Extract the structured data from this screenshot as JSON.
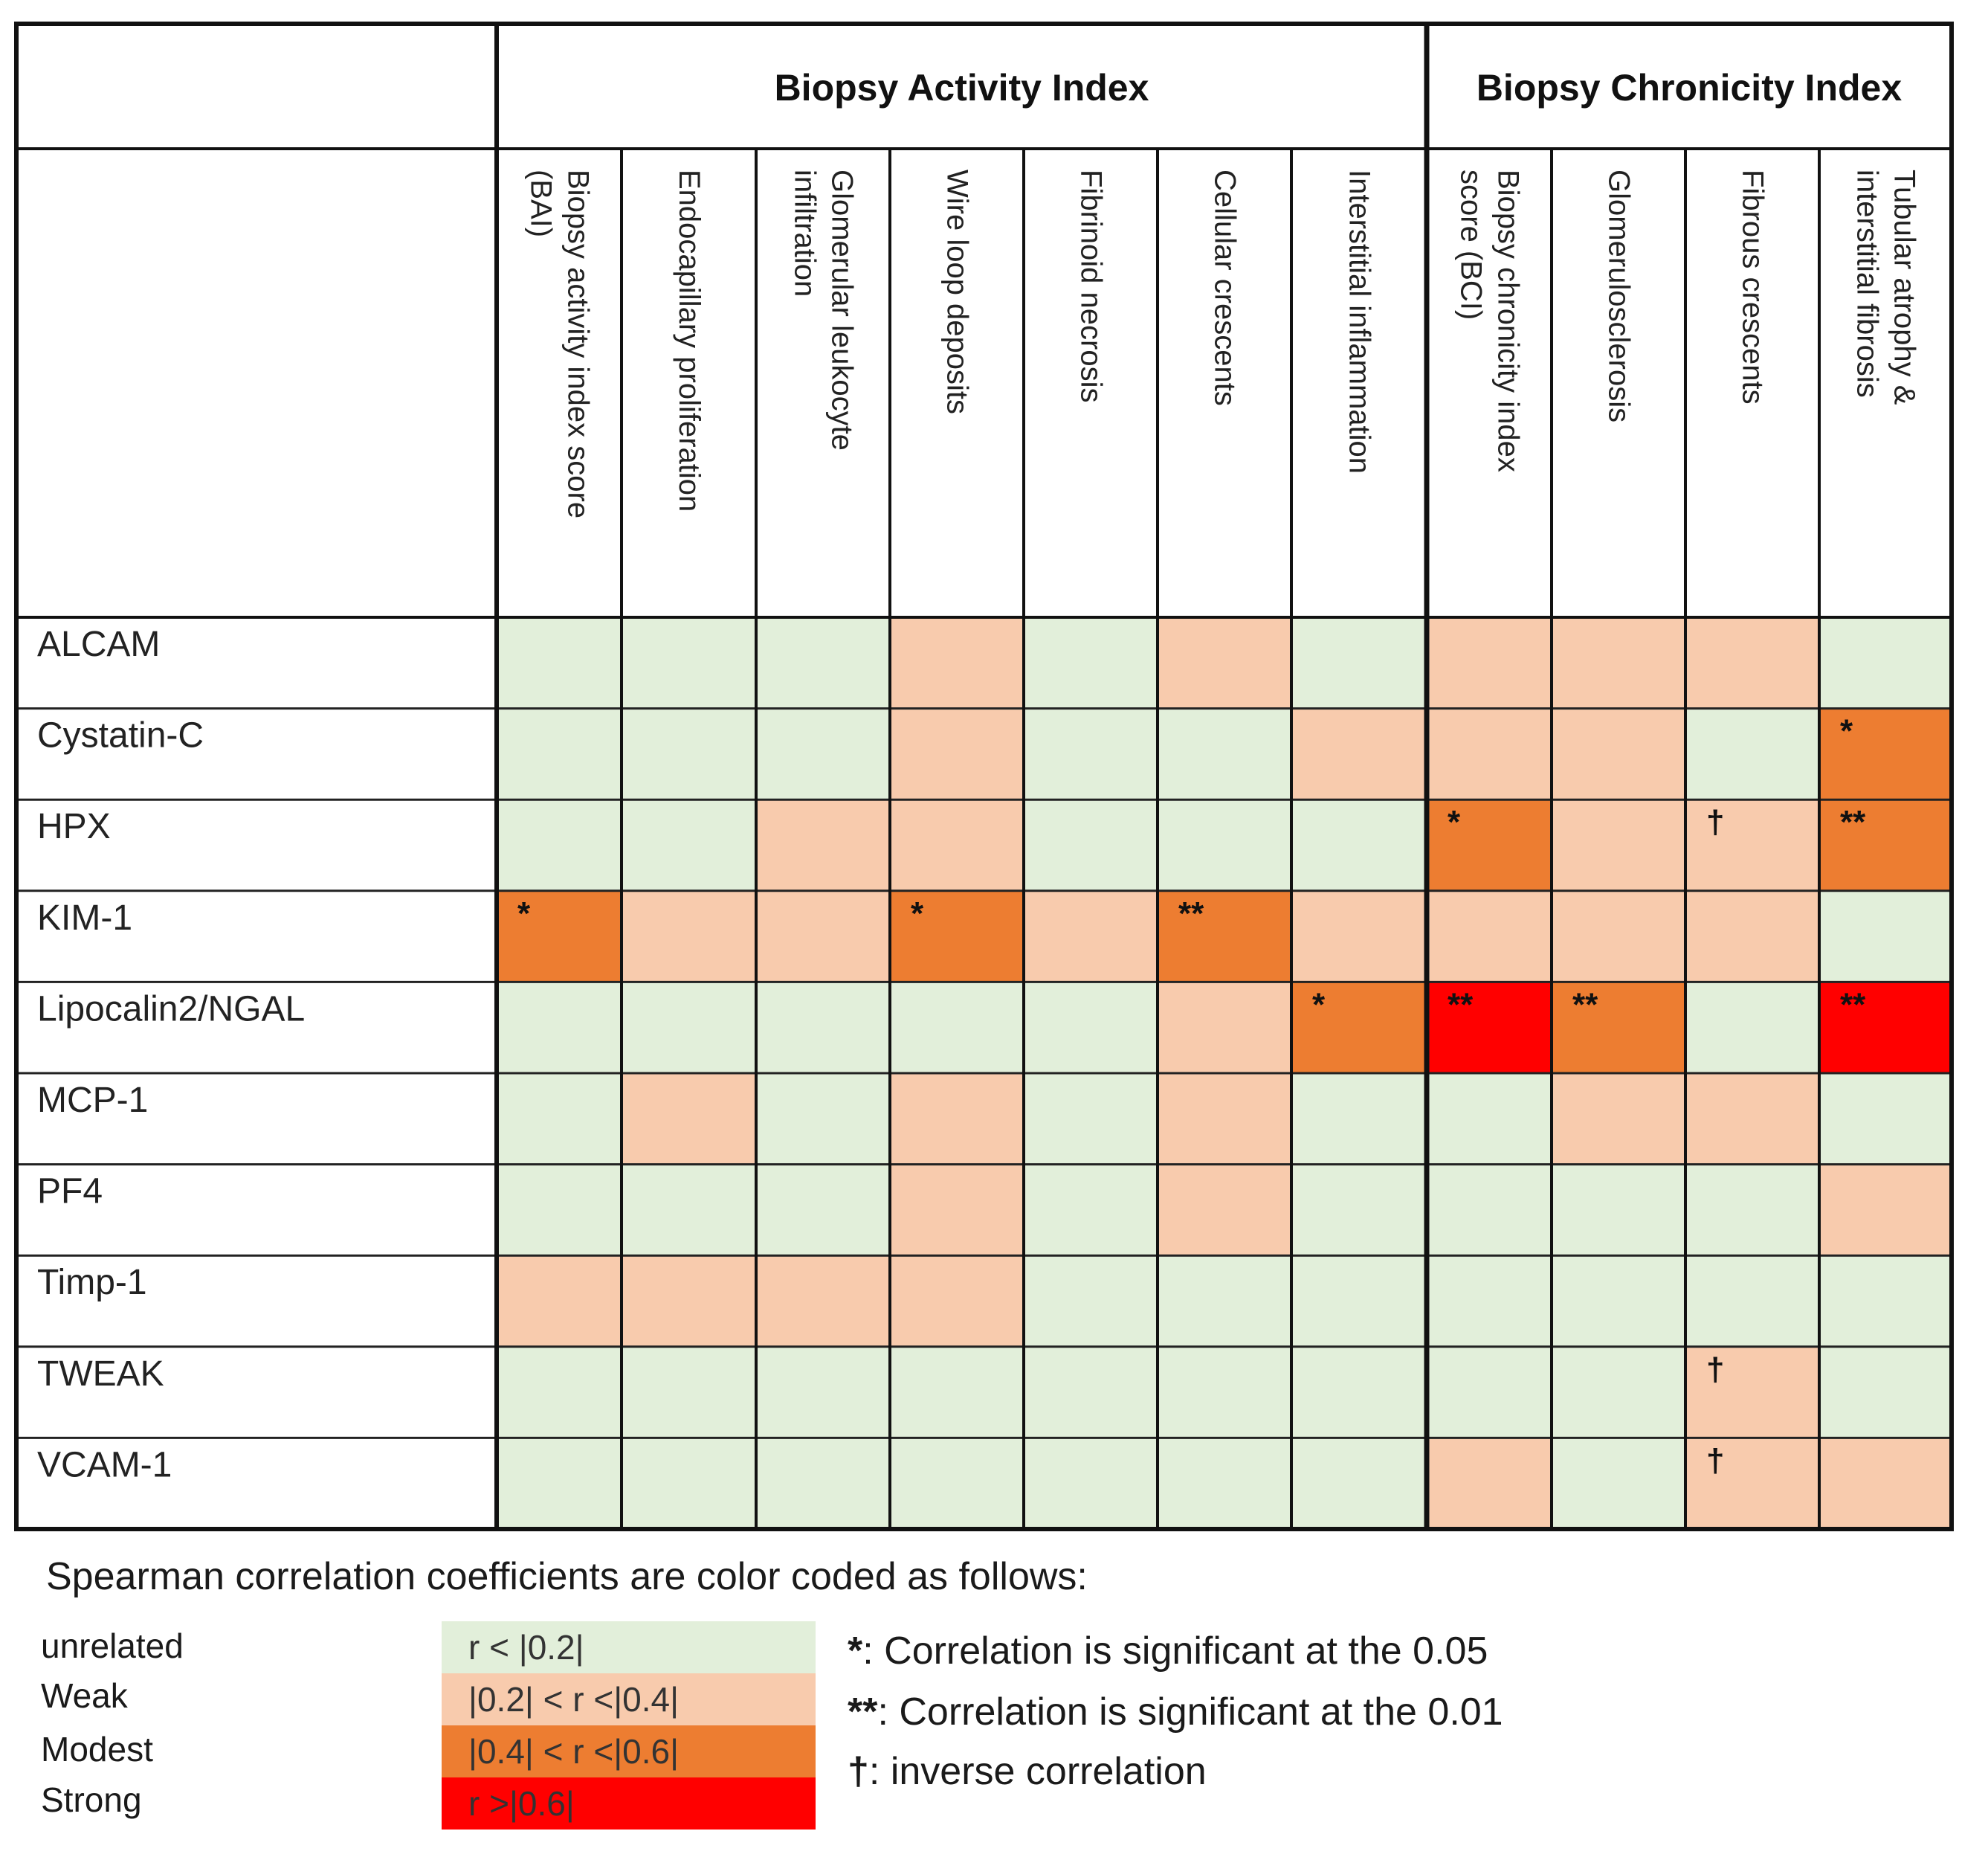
{
  "chart_data": {
    "type": "heatmap",
    "title": "",
    "groups": [
      {
        "label": "Biopsy Activity Index",
        "span": 7
      },
      {
        "label": "Biopsy Chronicity Index",
        "span": 4
      }
    ],
    "columns": [
      "Biopsy activity index score (BAI)",
      "Endocapillary proliferation",
      "Glomerular leukocyte infiltration",
      "Wire loop deposits",
      "Fibrinoid necrosis",
      "Cellular crescents",
      "Interstitial inflammation",
      "Biopsy chronicity index score (BCI)",
      "Glomerulosclerosis",
      "Fibrous crescents",
      "Tubular atrophy & interstitial fibrosis"
    ],
    "rows": [
      {
        "label": "ALCAM",
        "levels": [
          0,
          0,
          0,
          1,
          0,
          1,
          0,
          1,
          1,
          1,
          0
        ],
        "marks": [
          "",
          "",
          "",
          "",
          "",
          "",
          "",
          "",
          "",
          "",
          ""
        ]
      },
      {
        "label": "Cystatin-C",
        "levels": [
          0,
          0,
          0,
          1,
          0,
          0,
          1,
          1,
          1,
          0,
          2
        ],
        "marks": [
          "",
          "",
          "",
          "",
          "",
          "",
          "",
          "",
          "",
          "",
          "*"
        ]
      },
      {
        "label": "HPX",
        "levels": [
          0,
          0,
          1,
          1,
          0,
          0,
          0,
          2,
          1,
          1,
          2
        ],
        "marks": [
          "",
          "",
          "",
          "",
          "",
          "",
          "",
          "*",
          "",
          "†",
          "**"
        ]
      },
      {
        "label": "KIM-1",
        "levels": [
          2,
          1,
          1,
          2,
          1,
          2,
          1,
          1,
          1,
          1,
          0
        ],
        "marks": [
          "*",
          "",
          "",
          "*",
          "",
          "**",
          "",
          "",
          "",
          "",
          ""
        ]
      },
      {
        "label": "Lipocalin2/NGAL",
        "levels": [
          0,
          0,
          0,
          0,
          0,
          1,
          2,
          3,
          2,
          0,
          3
        ],
        "marks": [
          "",
          "",
          "",
          "",
          "",
          "",
          "*",
          "**",
          "**",
          "",
          "**"
        ]
      },
      {
        "label": "MCP-1",
        "levels": [
          0,
          1,
          0,
          1,
          0,
          1,
          0,
          0,
          1,
          1,
          0
        ],
        "marks": [
          "",
          "",
          "",
          "",
          "",
          "",
          "",
          "",
          "",
          "",
          ""
        ]
      },
      {
        "label": "PF4",
        "levels": [
          0,
          0,
          0,
          1,
          0,
          1,
          0,
          0,
          0,
          0,
          1
        ],
        "marks": [
          "",
          "",
          "",
          "",
          "",
          "",
          "",
          "",
          "",
          "",
          ""
        ]
      },
      {
        "label": "Timp-1",
        "levels": [
          1,
          1,
          1,
          1,
          0,
          0,
          0,
          0,
          0,
          0,
          0
        ],
        "marks": [
          "",
          "",
          "",
          "",
          "",
          "",
          "",
          "",
          "",
          "",
          ""
        ]
      },
      {
        "label": "TWEAK",
        "levels": [
          0,
          0,
          0,
          0,
          0,
          0,
          0,
          0,
          0,
          1,
          0
        ],
        "marks": [
          "",
          "",
          "",
          "",
          "",
          "",
          "",
          "",
          "",
          "†",
          ""
        ]
      },
      {
        "label": "VCAM-1",
        "levels": [
          0,
          0,
          0,
          0,
          0,
          0,
          0,
          1,
          0,
          1,
          1
        ],
        "marks": [
          "",
          "",
          "",
          "",
          "",
          "",
          "",
          "",
          "",
          "†",
          ""
        ]
      }
    ],
    "level_colors": [
      "#e2efda",
      "#f8cbad",
      "#ed7d31",
      "#ff0000"
    ]
  },
  "legend": {
    "caption": "Spearman correlation coefficients are color coded as follows:",
    "levels": [
      {
        "name": "unrelated",
        "range": "r < |0.2|"
      },
      {
        "name": "Weak",
        "range": "|0.2| < r <|0.4|"
      },
      {
        "name": "Modest",
        "range": "|0.4| < r <|0.6|"
      },
      {
        "name": "Strong",
        "range": "r >|0.6|"
      }
    ],
    "notes": [
      {
        "symbol": "*",
        "text": ": Correlation is significant at the 0.05"
      },
      {
        "symbol": "**",
        "text": ": Correlation is significant at the 0.01"
      },
      {
        "symbol": "†",
        "text": ": inverse correlation"
      }
    ]
  }
}
